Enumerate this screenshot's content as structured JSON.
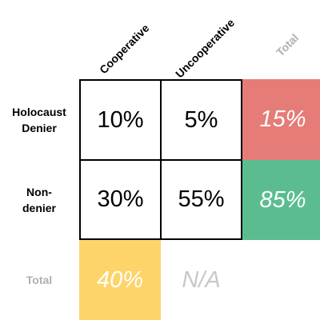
{
  "columns": {
    "cooperative": "Cooperative",
    "uncooperative": "Uncooperative",
    "total": "Total"
  },
  "rows": {
    "denier_line1": "Holocaust",
    "denier_line2": "Denier",
    "nondenier_line1": "Non-",
    "nondenier_line2": "denier",
    "total": "Total"
  },
  "cells": {
    "denier_cooperative": "10%",
    "denier_uncooperative": "5%",
    "denier_total": "15%",
    "nondenier_cooperative": "30%",
    "nondenier_uncooperative": "55%",
    "nondenier_total": "85%",
    "total_cooperative": "40%",
    "total_uncooperative": "N/A"
  },
  "colors": {
    "denier_total": "#e57c78",
    "nondenier_total": "#5bbd8f",
    "total_cooperative": "#fdd46a",
    "grid_border": "#000000",
    "muted_text": "#b0b0b0"
  }
}
